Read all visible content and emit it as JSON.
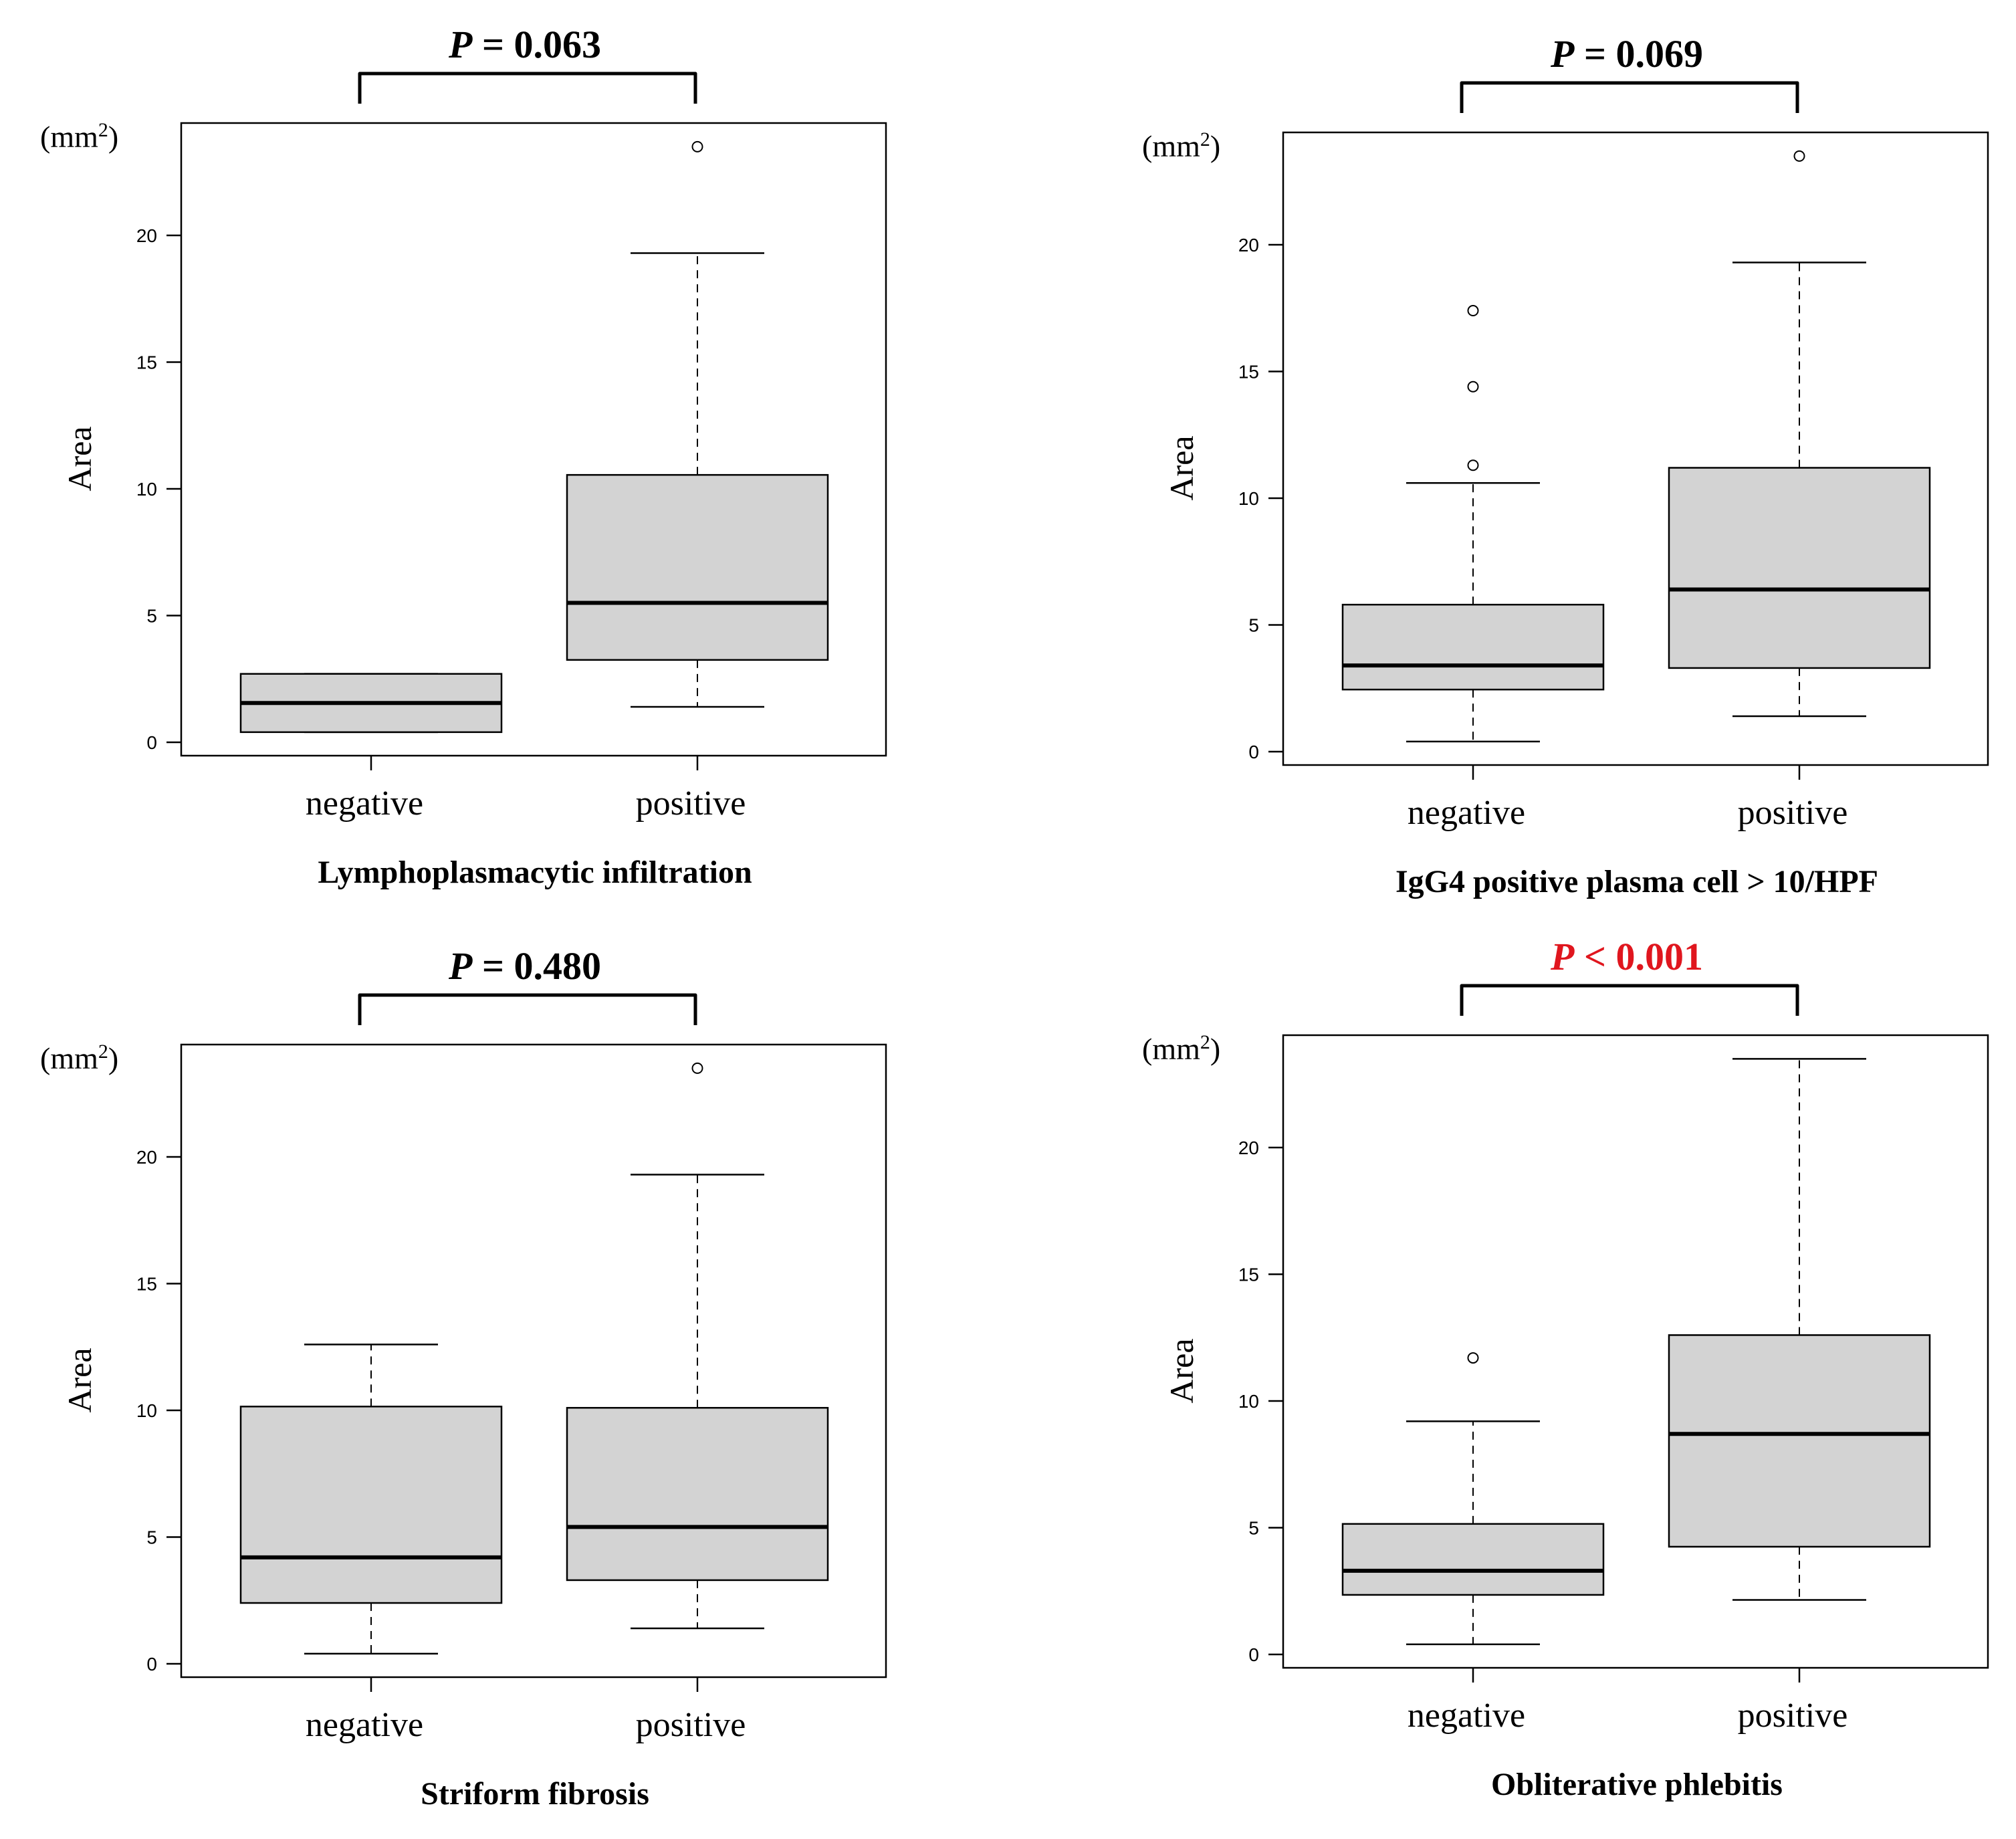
{
  "colors": {
    "box_fill": "#d3d3d3",
    "stroke": "#000000",
    "significant": "#e0161e"
  },
  "chart_data": [
    {
      "type": "boxplot",
      "title": "Lymphoplasmacytic infiltration",
      "p_label": "P",
      "p_rest": " = 0.063",
      "p_significant": false,
      "ylabel": "Area",
      "unit_base": "(mm",
      "unit_sup": "2",
      "unit_close": ")",
      "ylim": [
        0,
        24
      ],
      "yticks": [
        0,
        5,
        10,
        15,
        20
      ],
      "ytick_labels": [
        "0",
        "5",
        "10",
        "15",
        "20"
      ],
      "categories": [
        "negative",
        "positive"
      ],
      "boxes": [
        {
          "name": "negative",
          "lower_whisker": 0.4,
          "q1": 0.4,
          "median": 1.55,
          "q3": 2.7,
          "upper_whisker": 2.7,
          "outliers": []
        },
        {
          "name": "positive",
          "lower_whisker": 1.4,
          "q1": 3.25,
          "median": 5.5,
          "q3": 10.55,
          "upper_whisker": 19.3,
          "outliers": [
            23.5
          ]
        }
      ]
    },
    {
      "type": "boxplot",
      "title": "IgG4 positive plasma cell > 10/HPF",
      "p_label": "P",
      "p_rest": " = 0.069",
      "p_significant": false,
      "ylabel": "Area",
      "unit_base": "(mm",
      "unit_sup": "2",
      "unit_close": ")",
      "ylim": [
        0,
        24
      ],
      "yticks": [
        0,
        5,
        10,
        15,
        20
      ],
      "ytick_labels": [
        "0",
        "5",
        "10",
        "15",
        "20"
      ],
      "categories": [
        "negative",
        "positive"
      ],
      "boxes": [
        {
          "name": "negative",
          "lower_whisker": 0.4,
          "q1": 2.45,
          "median": 3.4,
          "q3": 5.8,
          "upper_whisker": 10.6,
          "outliers": [
            11.3,
            14.4,
            17.4
          ]
        },
        {
          "name": "positive",
          "lower_whisker": 1.4,
          "q1": 3.3,
          "median": 6.4,
          "q3": 11.2,
          "upper_whisker": 19.3,
          "outliers": [
            23.5
          ]
        }
      ]
    },
    {
      "type": "boxplot",
      "title": "Striform fibrosis",
      "p_label": "P",
      "p_rest": " = 0.480",
      "p_significant": false,
      "ylabel": "Area",
      "unit_base": "(mm",
      "unit_sup": "2",
      "unit_close": ")",
      "ylim": [
        0,
        24
      ],
      "yticks": [
        0,
        5,
        10,
        15,
        20
      ],
      "ytick_labels": [
        "0",
        "5",
        "10",
        "15",
        "20"
      ],
      "categories": [
        "negative",
        "positive"
      ],
      "boxes": [
        {
          "name": "negative",
          "lower_whisker": 0.4,
          "q1": 2.4,
          "median": 4.2,
          "q3": 10.15,
          "upper_whisker": 12.6,
          "outliers": []
        },
        {
          "name": "positive",
          "lower_whisker": 1.4,
          "q1": 3.3,
          "median": 5.4,
          "q3": 10.1,
          "upper_whisker": 19.3,
          "outliers": [
            23.5
          ]
        }
      ]
    },
    {
      "type": "boxplot",
      "title": "Obliterative phlebitis",
      "p_label": "P",
      "p_rest": " < 0.001",
      "p_significant": true,
      "ylabel": "Area",
      "unit_base": "(mm",
      "unit_sup": "2",
      "unit_close": ")",
      "ylim": [
        0,
        24
      ],
      "yticks": [
        0,
        5,
        10,
        15,
        20
      ],
      "ytick_labels": [
        "0",
        "5",
        "10",
        "15",
        "20"
      ],
      "categories": [
        "negative",
        "positive"
      ],
      "boxes": [
        {
          "name": "negative",
          "lower_whisker": 0.4,
          "q1": 2.35,
          "median": 3.3,
          "q3": 5.15,
          "upper_whisker": 9.2,
          "outliers": [
            11.7
          ]
        },
        {
          "name": "positive",
          "lower_whisker": 2.15,
          "q1": 4.25,
          "median": 8.7,
          "q3": 12.6,
          "upper_whisker": 23.5,
          "outliers": []
        }
      ]
    }
  ]
}
